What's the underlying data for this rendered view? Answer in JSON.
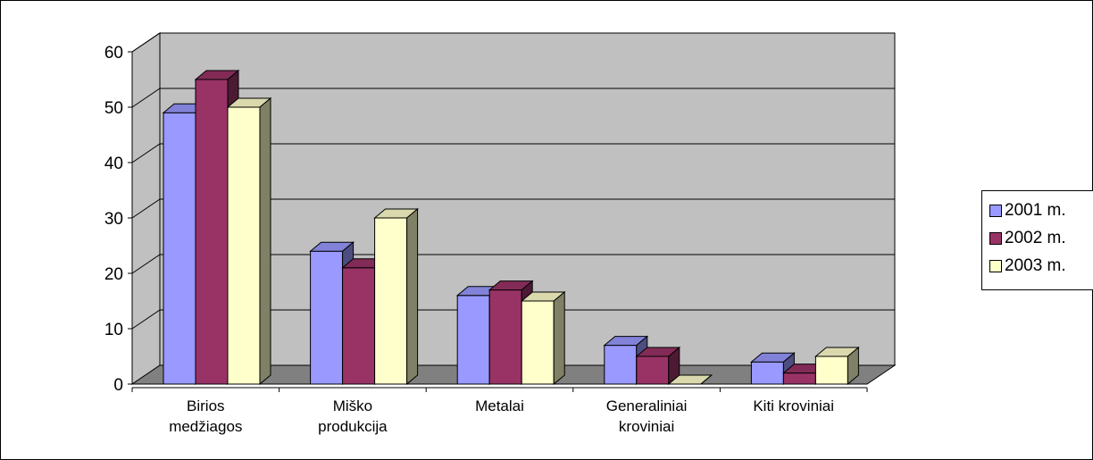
{
  "chart_data": {
    "type": "bar",
    "categories": [
      [
        "Birios",
        "medžiagos"
      ],
      [
        "Miško",
        "produkcija"
      ],
      [
        "Metalai"
      ],
      [
        "Generaliniai",
        "kroviniai"
      ],
      [
        "Kiti    kroviniai"
      ]
    ],
    "series": [
      {
        "name": "2001 m.",
        "color": "#9999ff",
        "values": [
          49,
          24,
          16,
          7,
          4
        ]
      },
      {
        "name": "2002 m.",
        "color": "#993366",
        "values": [
          55,
          21,
          17,
          5,
          2
        ]
      },
      {
        "name": "2003 m.",
        "color": "#ffffcc",
        "values": [
          50,
          30,
          15,
          0,
          5
        ]
      }
    ],
    "ylim": [
      0,
      60
    ],
    "yticks": [
      0,
      10,
      20,
      30,
      40,
      50,
      60
    ],
    "grid": true,
    "legend": "right",
    "wall_color": "#c0c0c0",
    "floor_color": "#808080"
  }
}
